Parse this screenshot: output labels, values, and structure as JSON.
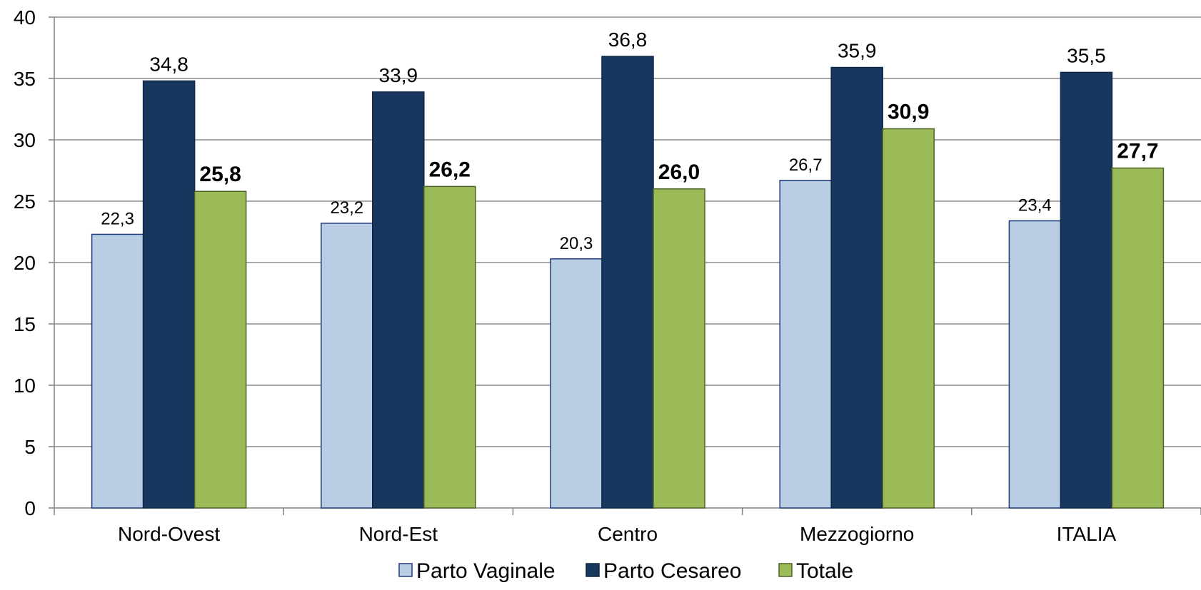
{
  "chart_data": {
    "type": "bar",
    "categories": [
      "Nord-Ovest",
      "Nord-Est",
      "Centro",
      "Mezzogiorno",
      "ITALIA"
    ],
    "series": [
      {
        "name": "Parto Vaginale",
        "values": [
          22.3,
          23.2,
          20.3,
          26.7,
          23.4
        ],
        "labels": [
          "22,3",
          "23,2",
          "20,3",
          "26,7",
          "23,4"
        ],
        "color": "#b9cde5",
        "stroke": "#1f3d7a",
        "label_bold": false
      },
      {
        "name": "Parto Cesareo",
        "values": [
          34.8,
          33.9,
          36.8,
          35.9,
          35.5
        ],
        "labels": [
          "34,8",
          "33,9",
          "36,8",
          "35,9",
          "35,5"
        ],
        "color": "#17375e",
        "stroke": "#0f2644",
        "label_bold": false
      },
      {
        "name": "Totale",
        "values": [
          25.8,
          26.2,
          26.0,
          30.9,
          27.7
        ],
        "labels": [
          "25,8",
          "26,2",
          "26,0",
          "30,9",
          "27,7"
        ],
        "color": "#9bbb59",
        "stroke": "#4f6228",
        "label_bold": true
      }
    ],
    "ylim": [
      0,
      40
    ],
    "yticks": [
      0,
      5,
      10,
      15,
      20,
      25,
      30,
      35,
      40
    ],
    "grid": true,
    "legend_position": "bottom",
    "title": "",
    "xlabel": "",
    "ylabel": ""
  }
}
